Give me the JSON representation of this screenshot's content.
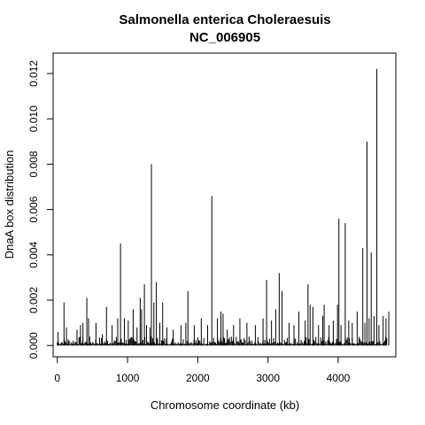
{
  "chart_data": {
    "type": "bar",
    "title_line1": "Salmonella enterica Choleraesuis",
    "title_line2": "NC_006905",
    "xlabel": "Chromosome coordinate (kb)",
    "ylabel": "DnaA box distribution",
    "xlim": [
      -60,
      4820
    ],
    "ylim": [
      -0.0005,
      0.0129
    ],
    "x_ticks": [
      0,
      1000,
      2000,
      3000,
      4000
    ],
    "x_tick_labels": [
      "0",
      "1000",
      "2000",
      "3000",
      "4000"
    ],
    "y_ticks": [
      0,
      0.002,
      0.004,
      0.006,
      0.008,
      0.01,
      0.012
    ],
    "y_tick_labels": [
      "0.000",
      "0.002",
      "0.004",
      "0.006",
      "0.008",
      "0.010",
      "0.012"
    ],
    "grid": false,
    "legend": "none",
    "color": "#000000",
    "peaks": {
      "x": [
        10,
        95,
        130,
        280,
        330,
        365,
        420,
        445,
        550,
        640,
        700,
        780,
        860,
        900,
        955,
        1010,
        1080,
        1135,
        1180,
        1200,
        1240,
        1270,
        1320,
        1340,
        1375,
        1410,
        1460,
        1500,
        1560,
        1650,
        1760,
        1830,
        1860,
        1950,
        2050,
        2140,
        2200,
        2280,
        2330,
        2360,
        2420,
        2510,
        2600,
        2700,
        2820,
        2930,
        2980,
        3050,
        3110,
        3160,
        3200,
        3300,
        3370,
        3440,
        3530,
        3570,
        3600,
        3640,
        3720,
        3780,
        3800,
        3870,
        3930,
        3990,
        4010,
        4040,
        4100,
        4150,
        4200,
        4270,
        4350,
        4380,
        4410,
        4440,
        4470,
        4510,
        4550,
        4580,
        4640,
        4680,
        4720
      ],
      "y": [
        0.0006,
        0.0019,
        0.0008,
        0.0007,
        0.0009,
        0.001,
        0.0021,
        0.0012,
        0.001,
        0.0005,
        0.0017,
        0.0009,
        0.0012,
        0.0045,
        0.0012,
        0.0011,
        0.0016,
        0.0008,
        0.0021,
        0.0016,
        0.0027,
        0.0009,
        0.0008,
        0.008,
        0.0019,
        0.0028,
        0.001,
        0.0019,
        0.0008,
        0.0007,
        0.0009,
        0.001,
        0.0024,
        0.0009,
        0.0012,
        0.0009,
        0.0066,
        0.0012,
        0.0015,
        0.0014,
        0.0007,
        0.0009,
        0.0012,
        0.001,
        0.0009,
        0.0012,
        0.0029,
        0.0011,
        0.0016,
        0.0032,
        0.0024,
        0.001,
        0.0009,
        0.0015,
        0.0011,
        0.0027,
        0.0018,
        0.0017,
        0.0009,
        0.0013,
        0.0018,
        0.0009,
        0.0011,
        0.0018,
        0.0056,
        0.0009,
        0.0054,
        0.0011,
        0.001,
        0.0015,
        0.0043,
        0.001,
        0.009,
        0.0012,
        0.0041,
        0.0013,
        0.0122,
        0.0009,
        0.0013,
        0.0012,
        0.0015
      ]
    },
    "background_max": 0.0004
  }
}
